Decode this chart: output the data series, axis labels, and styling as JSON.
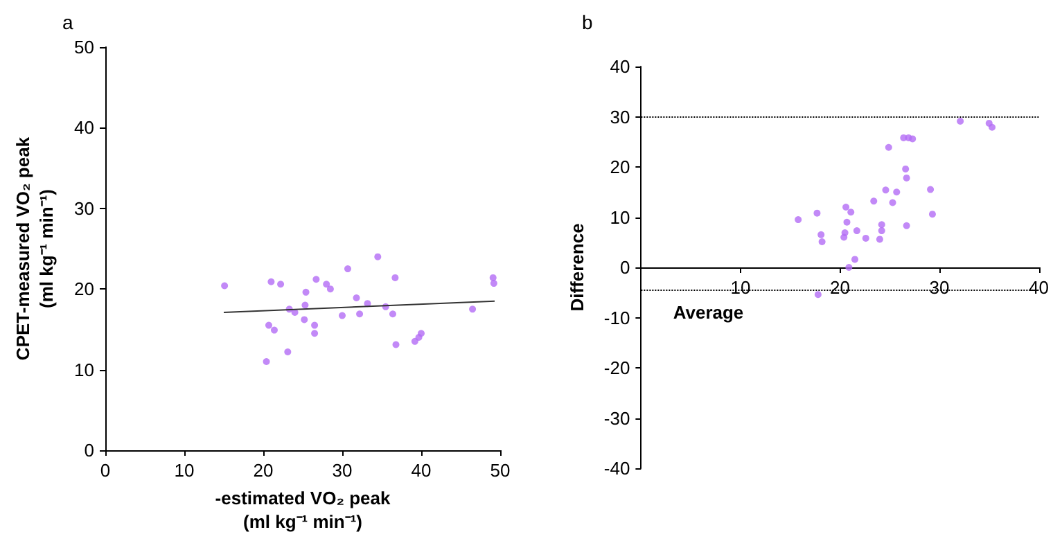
{
  "chart_data": [
    {
      "type": "scatter",
      "title": "a",
      "xlabel": "-estimated VO₂ peak\n(ml kg⁻¹ min⁻¹)",
      "ylabel": "CPET-measured VO₂ peak\n(ml kg⁻¹ min⁻¹)",
      "xlim": [
        0,
        50
      ],
      "xticks": [
        0,
        10,
        20,
        30,
        40,
        50
      ],
      "ylim": [
        0,
        50
      ],
      "yticks": [
        0,
        10,
        20,
        30,
        40,
        50
      ],
      "series": [
        {
          "marker": "circle",
          "color": "#b36bf5",
          "x": [
            15.1,
            21.0,
            22.2,
            20.7,
            21.4,
            20.4,
            23.1,
            23.3,
            24.0,
            25.4,
            25.3,
            25.2,
            26.5,
            26.5,
            26.7,
            28.0,
            28.5,
            30.0,
            30.7,
            31.8,
            32.2,
            33.2,
            34.5,
            35.5,
            36.7,
            36.4,
            36.8,
            39.2,
            39.7,
            40.0,
            46.5,
            49.1,
            49.2
          ],
          "values": [
            20.4,
            20.9,
            20.6,
            15.5,
            14.9,
            11.0,
            12.2,
            17.5,
            17.1,
            19.6,
            18.0,
            16.2,
            15.5,
            14.5,
            21.2,
            20.6,
            20.0,
            16.7,
            22.5,
            18.9,
            16.9,
            18.2,
            24.0,
            17.8,
            21.4,
            16.9,
            13.1,
            13.5,
            14.0,
            14.5,
            17.5,
            21.4,
            20.7
          ]
        },
        {
          "type": "line",
          "marker": "none",
          "color": "#333333",
          "x": [
            15,
            49.3
          ],
          "values": [
            17.1,
            18.5
          ]
        }
      ]
    },
    {
      "type": "scatter",
      "title": "b",
      "xlabel": "Average",
      "ylabel": "Difference",
      "xlim": [
        0,
        40
      ],
      "xticks": [
        10,
        20,
        30,
        40
      ],
      "ylim": [
        -40,
        40
      ],
      "yticks": [
        -40,
        -30,
        -20,
        -10,
        0,
        10,
        20,
        30,
        40
      ],
      "ref_lines": [
        {
          "axis": "y",
          "value": 30,
          "line_style": "dotted",
          "color": "#000000"
        },
        {
          "axis": "y",
          "value": -4.4,
          "line_style": "dotted",
          "color": "#000000"
        }
      ],
      "series": [
        {
          "marker": "circle",
          "color": "#b36bf5",
          "x": [
            15.8,
            17.7,
            18.1,
            18.2,
            17.8,
            20.6,
            21.1,
            20.7,
            20.5,
            20.4,
            21.5,
            20.9,
            21.7,
            22.6,
            23.4,
            24.0,
            24.2,
            24.2,
            24.6,
            24.9,
            25.3,
            25.7,
            26.4,
            26.9,
            27.3,
            26.6,
            26.7,
            26.7,
            29.1,
            29.3,
            32.1,
            35.0,
            35.3
          ],
          "values": [
            9.5,
            10.8,
            6.5,
            5.1,
            -5.4,
            12.0,
            11.0,
            9.0,
            6.9,
            6.0,
            1.6,
            0,
            7.3,
            5.8,
            13.2,
            5.6,
            8.5,
            7.3,
            15.4,
            23.9,
            12.9,
            15.0,
            25.8,
            25.8,
            25.6,
            19.6,
            17.8,
            8.3,
            15.5,
            10.6,
            29.1,
            28.7,
            27.9
          ]
        }
      ]
    }
  ]
}
